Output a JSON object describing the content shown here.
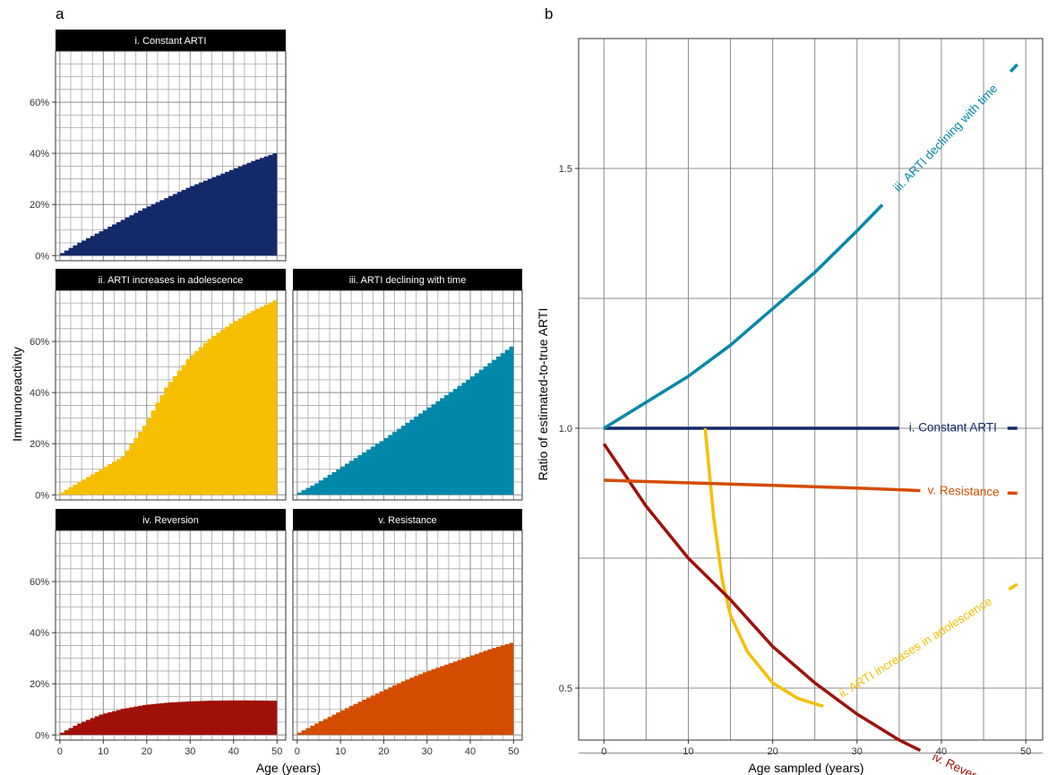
{
  "panel_a": {
    "label": "a",
    "ylabel": "Immunoreactivity",
    "xlabel": "Age (years)"
  },
  "panel_b": {
    "label": "b",
    "ylabel": "Ratio of estimated-to-true ARTI",
    "xlabel": "Age sampled (years)"
  },
  "colors": {
    "i": "#14296a",
    "ii": "#f5bf00",
    "iii": "#0088aa",
    "iv": "#a01008",
    "v": "#d34c00"
  },
  "chart_data": [
    {
      "type": "area",
      "panel": "a",
      "facets": [
        {
          "key": "i",
          "title": "i. Constant ARTI",
          "color": "#14296a",
          "x": [
            0,
            5,
            10,
            15,
            20,
            25,
            30,
            35,
            40,
            45,
            50
          ],
          "values": [
            0.0,
            0.05,
            0.095,
            0.14,
            0.185,
            0.225,
            0.265,
            0.3,
            0.335,
            0.37,
            0.4
          ]
        },
        {
          "key": "ii",
          "title": "ii. ARTI increases in adolescence",
          "color": "#f5bf00",
          "x": [
            0,
            5,
            10,
            15,
            20,
            25,
            30,
            35,
            40,
            45,
            50
          ],
          "values": [
            0.0,
            0.05,
            0.1,
            0.15,
            0.27,
            0.42,
            0.53,
            0.61,
            0.67,
            0.72,
            0.76
          ]
        },
        {
          "key": "iii",
          "title": "iii. ARTI declining with time",
          "color": "#0088aa",
          "x": [
            0,
            5,
            10,
            15,
            20,
            25,
            30,
            35,
            40,
            45,
            50
          ],
          "values": [
            0.0,
            0.045,
            0.1,
            0.155,
            0.21,
            0.27,
            0.33,
            0.39,
            0.45,
            0.515,
            0.58
          ]
        },
        {
          "key": "iv",
          "title": "iv. Reversion",
          "color": "#a01008",
          "x": [
            0,
            5,
            10,
            15,
            20,
            25,
            30,
            35,
            40,
            45,
            50
          ],
          "values": [
            0.0,
            0.045,
            0.08,
            0.102,
            0.117,
            0.126,
            0.131,
            0.134,
            0.135,
            0.135,
            0.134
          ]
        },
        {
          "key": "v",
          "title": "v. Resistance",
          "color": "#d34c00",
          "x": [
            0,
            5,
            10,
            15,
            20,
            25,
            30,
            35,
            40,
            45,
            50
          ],
          "values": [
            0.0,
            0.045,
            0.088,
            0.13,
            0.17,
            0.21,
            0.245,
            0.275,
            0.305,
            0.335,
            0.36
          ]
        }
      ],
      "xlim": [
        -1,
        52
      ],
      "ylim": [
        -0.02,
        0.8
      ],
      "xticks": [
        0,
        10,
        20,
        30,
        40,
        50
      ],
      "xtick_labels": [
        "0",
        "10",
        "20",
        "30",
        "40",
        "50"
      ],
      "yticks": [
        0,
        0.2,
        0.4,
        0.6
      ],
      "ytick_labels": [
        "0%",
        "20%",
        "40%",
        "60%"
      ],
      "xlabel": "Age (years)",
      "ylabel": "Immunoreactivity",
      "grid": true
    },
    {
      "type": "line",
      "panel": "b",
      "xlim": [
        -3,
        52
      ],
      "ylim": [
        0.4,
        1.75
      ],
      "xticks": [
        0,
        10,
        20,
        30,
        40,
        50
      ],
      "xtick_labels": [
        "0",
        "10",
        "20",
        "30",
        "40",
        "50"
      ],
      "yticks": [
        0.5,
        1.0,
        1.5
      ],
      "ytick_labels": [
        "0.5",
        "1.0",
        "1.5"
      ],
      "xlabel": "Age sampled (years)",
      "ylabel": "Ratio of estimated-to-true ARTI",
      "grid": true,
      "series": [
        {
          "key": "i",
          "name": "i. Constant ARTI",
          "color": "#14296a",
          "x": [
            0,
            35,
            49
          ],
          "y": [
            1.0,
            1.0,
            1.0
          ]
        },
        {
          "key": "ii",
          "name": "ii. ARTI increases in adolescence",
          "color": "#f5bf00",
          "x": [
            12,
            13,
            14,
            15,
            17,
            20,
            23,
            26,
            49
          ],
          "y": [
            1.0,
            0.83,
            0.71,
            0.64,
            0.57,
            0.51,
            0.48,
            0.465,
            0.7
          ]
        },
        {
          "key": "iii",
          "name": "iii. ARTI declining with time",
          "color": "#0088aa",
          "x": [
            0,
            5,
            10,
            15,
            20,
            25,
            30,
            33,
            49
          ],
          "y": [
            1.0,
            1.05,
            1.1,
            1.16,
            1.23,
            1.3,
            1.38,
            1.43,
            1.7
          ]
        },
        {
          "key": "iv",
          "name": "iv. Reversion",
          "color": "#a01008",
          "x": [
            0,
            5,
            10,
            15,
            20,
            25,
            30,
            35,
            37.5,
            49
          ],
          "y": [
            0.97,
            0.85,
            0.75,
            0.67,
            0.58,
            0.51,
            0.45,
            0.4,
            0.38,
            0.29
          ]
        },
        {
          "key": "v",
          "name": "v. Resistance",
          "color": "#d34c00",
          "x": [
            0,
            10,
            20,
            30,
            37.5,
            49
          ],
          "y": [
            0.9,
            0.895,
            0.89,
            0.885,
            0.88,
            0.875
          ]
        }
      ],
      "annotations": [
        {
          "series": "iii",
          "text": "iii. ARTI declining with time"
        },
        {
          "series": "i",
          "text": "i. Constant ARTI"
        },
        {
          "series": "v",
          "text": "v. Resistance"
        },
        {
          "series": "ii",
          "text": "ii. ARTI increases in adolescence"
        },
        {
          "series": "iv",
          "text": "iv. Reversion"
        }
      ]
    }
  ]
}
